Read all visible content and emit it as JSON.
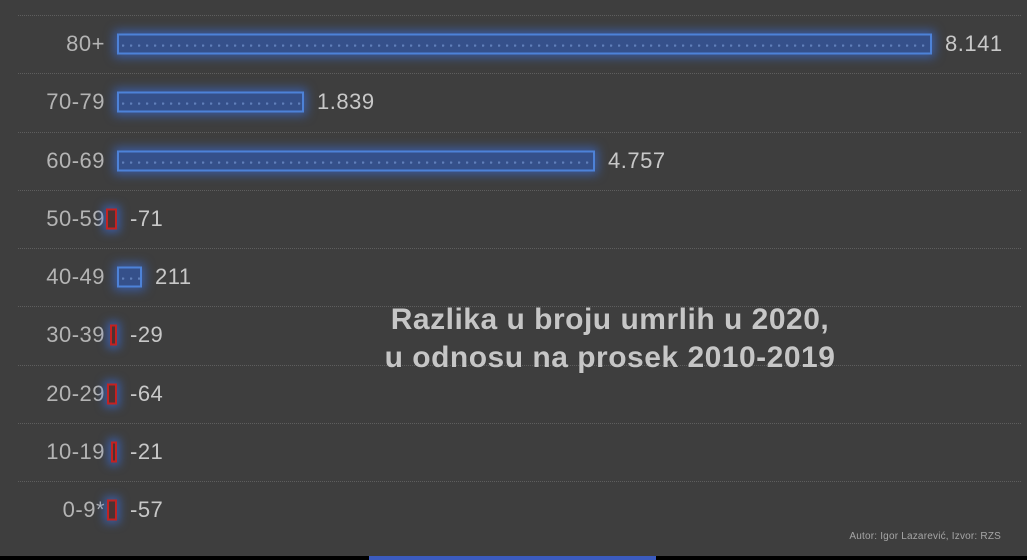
{
  "chart_data": {
    "type": "bar",
    "orientation": "horizontal",
    "title": "Razlika u broju umrlih u 2020, u odnosu na prosek 2010-2019",
    "title_lines": [
      "Razlika u broju umrlih u 2020,",
      "u odnosu na prosek 2010-2019"
    ],
    "categories": [
      "80+",
      "70-79",
      "60-69",
      "50-59",
      "40-49",
      "30-39",
      "20-29",
      "10-19",
      "0-9*"
    ],
    "values": [
      8141,
      1839,
      4757,
      -71,
      211,
      -29,
      -64,
      -21,
      -57
    ],
    "value_labels": [
      "8.141",
      "1.839",
      "4.757",
      "-71",
      "211",
      "-29",
      "-64",
      "-21",
      "-57"
    ],
    "xlim": [
      0,
      8141
    ],
    "grid": "horizontal-dotted-row-separators",
    "legend": "none",
    "colors": {
      "background": "#3e3e3e",
      "positive_fill": "#35508a",
      "positive_border": "#4d82d8",
      "negative_border": "#c32222",
      "glow": "#3b6cd4",
      "gridline": "#5e5e5e",
      "category_text": "#b4b4b4",
      "value_text": "#c8c8c8",
      "title_text": "#c6c6c6",
      "progress_bar": "#3b5bbf"
    }
  },
  "footer": {
    "credit": "Autor: Igor Lazarević, Izvor: RZS"
  }
}
